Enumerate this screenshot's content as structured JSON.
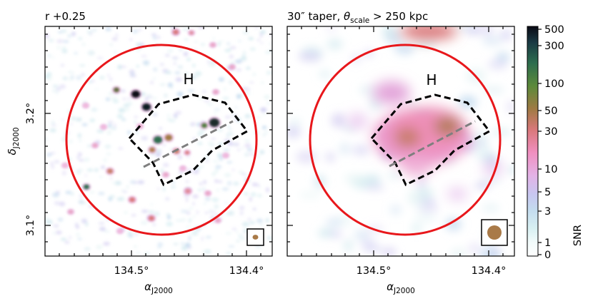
{
  "chart_data": [
    {
      "type": "heatmap",
      "title": "r +0.25",
      "xlabel": "α_J2000",
      "ylabel": "δ_J2000",
      "x_ticks": [
        "134.5°",
        "134.4°"
      ],
      "y_ticks": [
        "3.2°",
        "3.1°"
      ],
      "region_label": "H",
      "annotation": "SNR radio map, r = +0.25 weighting; red circle marks cluster region, dashed polygon marks halo H"
    },
    {
      "type": "heatmap",
      "title_prefix": "30″ taper, ",
      "title_theta": "θ",
      "title_sub": "scale",
      "title_suffix": " > 250 kpc",
      "xlabel": "α_J2000",
      "x_ticks": [
        "134.5°",
        "134.4°"
      ],
      "region_label": "H"
    }
  ],
  "colorbar": {
    "label": "SNR",
    "ticks": [
      "500",
      "300",
      "100",
      "50",
      "30",
      "10",
      "5",
      "3",
      "1",
      "0"
    ],
    "tick_values": [
      500,
      300,
      100,
      50,
      30,
      10,
      5,
      3,
      1,
      0
    ]
  },
  "axis_label": {
    "alpha_main": "α",
    "alpha_sub": "J2000",
    "delta_main": "δ",
    "delta_sub": "J2000"
  },
  "colors": {
    "circle": "#e8171b",
    "polygon": "#000000",
    "dashed_line": "#7f7f7f",
    "beam": "#a97a48"
  }
}
